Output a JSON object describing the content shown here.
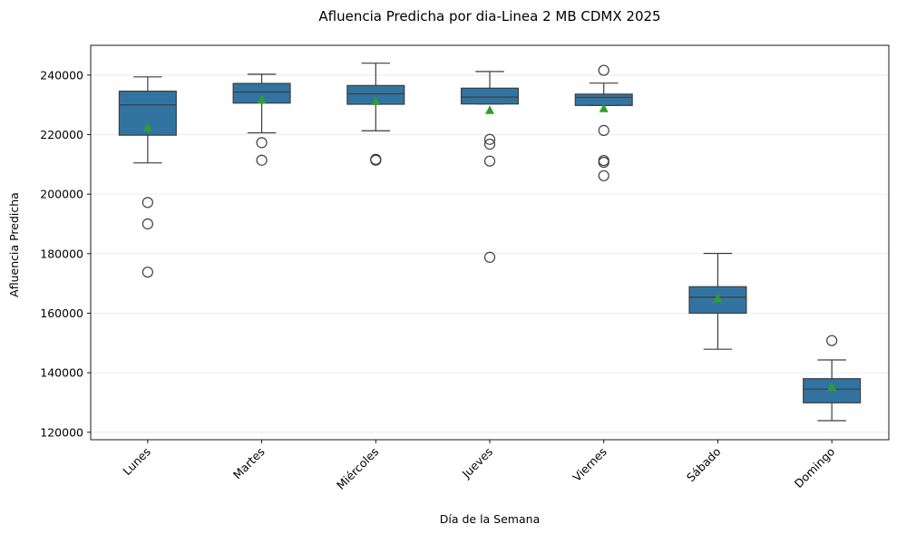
{
  "chart_data": {
    "type": "box",
    "title": "Afluencia Predicha por dia-Linea 2 MB CDMX 2025",
    "xlabel": "Día de la Semana",
    "ylabel": "Afluencia  Predicha",
    "ylim": [
      117500,
      250000
    ],
    "yticks": [
      120000,
      140000,
      160000,
      180000,
      200000,
      220000,
      240000
    ],
    "ytick_labels": [
      "120000",
      "140000",
      "160000",
      "180000",
      "200000",
      "220000",
      "240000"
    ],
    "grid": "y",
    "colors": {
      "box": "#3274a1",
      "line": "#3d3d3d",
      "mean": "#2ca02c",
      "grid": "#e6e6e6"
    },
    "categories": [
      "Lunes",
      "Martes",
      "Miércoles",
      "Jueves",
      "Viernes",
      "Sábado",
      "Domingo"
    ],
    "boxes": [
      {
        "whisker_low": 210500,
        "q1": 219800,
        "median": 230000,
        "q3": 234600,
        "whisker_high": 239400,
        "mean": 222500,
        "outliers": [
          197200,
          190000,
          173800
        ]
      },
      {
        "whisker_low": 220600,
        "q1": 230600,
        "median": 234300,
        "q3": 237200,
        "whisker_high": 240300,
        "mean": 231800,
        "outliers": [
          217300,
          211400
        ]
      },
      {
        "whisker_low": 221300,
        "q1": 230200,
        "median": 233700,
        "q3": 236500,
        "whisker_high": 244000,
        "mean": 231300,
        "outliers": [
          211700,
          211400
        ]
      },
      {
        "whisker_low": 230300,
        "q1": 230300,
        "median": 232600,
        "q3": 235600,
        "whisker_high": 241200,
        "mean": 228300,
        "outliers": [
          218400,
          216800,
          211100,
          178800
        ]
      },
      {
        "whisker_low": 229800,
        "q1": 229800,
        "median": 232500,
        "q3": 233600,
        "whisker_high": 237300,
        "mean": 228900,
        "outliers": [
          241600,
          221400,
          211300,
          210700,
          206200
        ]
      },
      {
        "whisker_low": 147900,
        "q1": 160000,
        "median": 165400,
        "q3": 168900,
        "whisker_high": 180100,
        "mean": 165000,
        "outliers": []
      },
      {
        "whisker_low": 123900,
        "q1": 129900,
        "median": 134500,
        "q3": 138000,
        "whisker_high": 144300,
        "mean": 135300,
        "outliers": [
          150800
        ]
      }
    ]
  }
}
